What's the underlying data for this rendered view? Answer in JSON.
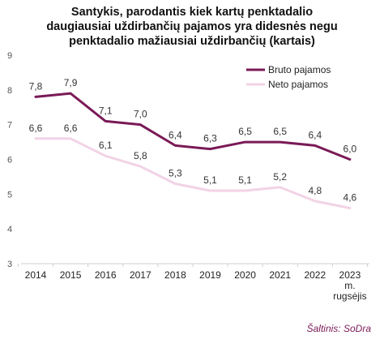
{
  "chart_data": {
    "type": "line",
    "title_lines": [
      "Santykis, parodantis kiek kartų penktadalio",
      "daugiausiai uždirbančių pajamos yra didesnės negu",
      "penktadalio mažiausiai uždirbančių (kartais)"
    ],
    "xlabel": "",
    "ylabel": "",
    "ylim": [
      3,
      9
    ],
    "yticks": [
      3,
      4,
      5,
      6,
      7,
      8,
      9
    ],
    "categories": [
      "2014",
      "2015",
      "2016",
      "2017",
      "2018",
      "2019",
      "2020",
      "2021",
      "2022",
      "2023 m. rugsėjis"
    ],
    "category_label_lines": [
      [
        "2014"
      ],
      [
        "2015"
      ],
      [
        "2016"
      ],
      [
        "2017"
      ],
      [
        "2018"
      ],
      [
        "2019"
      ],
      [
        "2020"
      ],
      [
        "2021"
      ],
      [
        "2022"
      ],
      [
        "2023",
        "m.",
        "rugsėjis"
      ]
    ],
    "series": [
      {
        "name": "Bruto pajamos",
        "color": "#7a1a57",
        "values": [
          7.8,
          7.9,
          7.1,
          7.0,
          6.4,
          6.3,
          6.5,
          6.5,
          6.4,
          6.0
        ],
        "labels": [
          "7,8",
          "7,9",
          "7,1",
          "7,0",
          "6,4",
          "6,3",
          "6,5",
          "6,5",
          "6,4",
          "6,0"
        ]
      },
      {
        "name": "Neto pajamos",
        "color": "#f2d3e6",
        "values": [
          6.6,
          6.6,
          6.1,
          5.8,
          5.3,
          5.1,
          5.1,
          5.2,
          4.8,
          4.6
        ],
        "labels": [
          "6,6",
          "6,6",
          "6,1",
          "5,8",
          "5,3",
          "5,1",
          "5,1",
          "5,2",
          "4,8",
          "4,6"
        ]
      }
    ],
    "legend_position": "top-right",
    "grid": false
  },
  "source": "Šaltinis: SoDra"
}
